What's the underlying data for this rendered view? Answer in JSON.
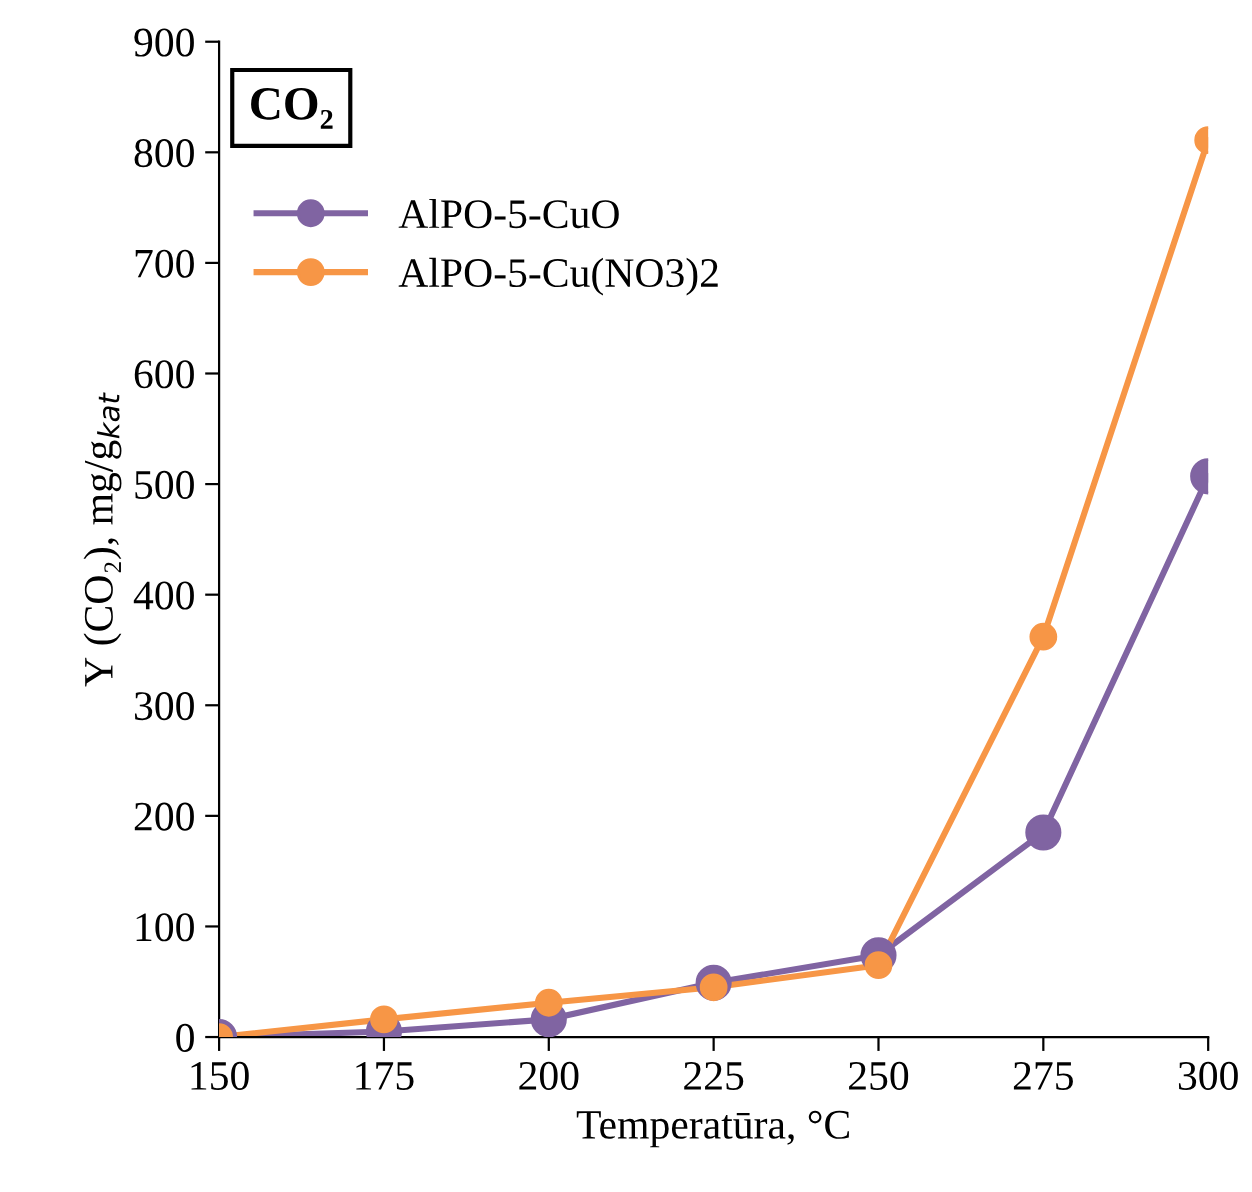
{
  "chart_data": {
    "type": "line",
    "xlabel": "Temperatūra, °C",
    "ylabel": "Y (CO₂), mg/g$_{kat}$",
    "annotations": [
      "CO₂"
    ],
    "x": [
      150,
      175,
      200,
      225,
      250,
      275,
      300
    ],
    "series": [
      {
        "name": "AlPO-5-CuO",
        "color": "#8064a2",
        "values": [
          0,
          5,
          16,
          49,
          74,
          185,
          507
        ]
      },
      {
        "name": "AlPO-5-Cu(NO3)2",
        "color": "#f79646",
        "values": [
          0,
          16,
          31,
          45,
          65,
          362,
          811
        ]
      }
    ],
    "xlim": [
      150,
      300
    ],
    "xticks": [
      150,
      175,
      200,
      225,
      250,
      275,
      300
    ],
    "ylim": [
      0,
      900
    ],
    "yticks": [
      0,
      100,
      200,
      300,
      400,
      500,
      600,
      700,
      800,
      900
    ],
    "grid": false,
    "legend": "top left",
    "marker": "circle",
    "line_style": "solid"
  }
}
